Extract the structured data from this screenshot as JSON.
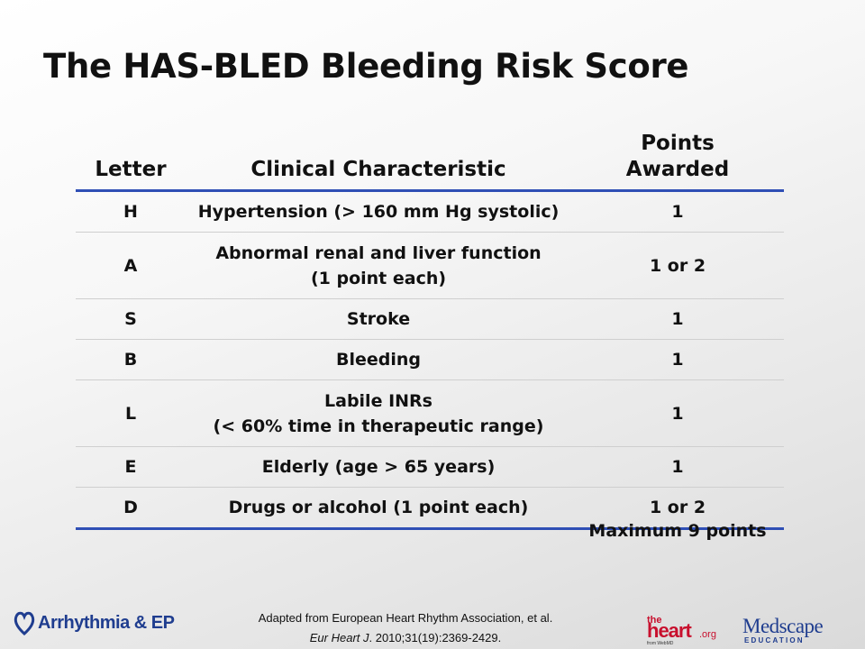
{
  "title": "The HAS-BLED Bleeding Risk Score",
  "table": {
    "headers": {
      "letter": "Letter",
      "clinical": "Clinical Characteristic",
      "points": "Points\nAwarded"
    },
    "rows": [
      {
        "letter": "H",
        "clinical": "Hypertension (> 160 mm Hg systolic)",
        "points": "1"
      },
      {
        "letter": "A",
        "clinical": "Abnormal renal and liver function\n(1 point each)",
        "points": "1 or 2"
      },
      {
        "letter": "S",
        "clinical": "Stroke",
        "points": "1"
      },
      {
        "letter": "B",
        "clinical": "Bleeding",
        "points": "1"
      },
      {
        "letter": "L",
        "clinical": "Labile INRs\n(< 60% time in therapeutic range)",
        "points": "1"
      },
      {
        "letter": "E",
        "clinical": "Elderly (age > 65 years)",
        "points": "1"
      },
      {
        "letter": "D",
        "clinical": "Drugs or alcohol (1 point each)",
        "points": "1 or 2"
      }
    ],
    "footer_note": "Maximum 9 points"
  },
  "citation": {
    "line1": "Adapted from European Heart Rhythm Association, et al.",
    "journal": "Eur Heart J",
    "rest": ". 2010;31(19):2369-2429."
  },
  "logos": {
    "arrhythmia": "Arrhythmia & EP",
    "theheart": "theheart.org",
    "theheart_sub": "from WebMD",
    "medscape": "Medscape",
    "medscape_sub": "EDUCATION"
  },
  "colors": {
    "rule": "#2f4fb5",
    "logo_blue": "#1f3d8f",
    "heart_red": "#c8102e"
  }
}
